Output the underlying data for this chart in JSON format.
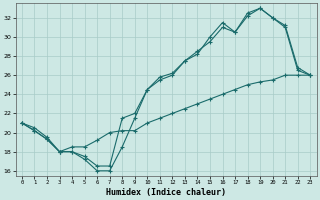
{
  "xlabel": "Humidex (Indice chaleur)",
  "xlim": [
    -0.5,
    23.5
  ],
  "ylim": [
    15.5,
    33.5
  ],
  "xticks": [
    0,
    1,
    2,
    3,
    4,
    5,
    6,
    7,
    8,
    9,
    10,
    11,
    12,
    13,
    14,
    15,
    16,
    17,
    18,
    19,
    20,
    21,
    22,
    23
  ],
  "yticks": [
    16,
    18,
    20,
    22,
    24,
    26,
    28,
    30,
    32
  ],
  "bg_color": "#cde8e4",
  "grid_color": "#a8ccc8",
  "line_color": "#1a6b6b",
  "series1_x": [
    0,
    1,
    2,
    3,
    4,
    5,
    6,
    7,
    8,
    9,
    10,
    11,
    12,
    13,
    14,
    15,
    16,
    17,
    18,
    19,
    20,
    21,
    22,
    23
  ],
  "series1_y": [
    21.0,
    20.2,
    19.3,
    18.0,
    18.0,
    17.2,
    16.0,
    16.0,
    18.5,
    21.5,
    24.5,
    25.8,
    26.2,
    27.5,
    28.5,
    29.5,
    31.0,
    30.5,
    32.2,
    33.0,
    32.0,
    31.0,
    26.5,
    26.0
  ],
  "series2_x": [
    0,
    1,
    2,
    3,
    4,
    5,
    6,
    7,
    8,
    9,
    10,
    11,
    12,
    13,
    14,
    15,
    16,
    17,
    18,
    19,
    20,
    21,
    22,
    23
  ],
  "series2_y": [
    21.0,
    20.2,
    19.3,
    18.0,
    18.0,
    17.5,
    16.5,
    16.5,
    21.5,
    22.0,
    24.5,
    25.5,
    26.0,
    27.5,
    28.2,
    30.0,
    31.5,
    30.5,
    32.5,
    33.0,
    32.0,
    31.2,
    26.8,
    26.0
  ],
  "series3_x": [
    0,
    1,
    2,
    3,
    4,
    5,
    6,
    7,
    8,
    9,
    10,
    11,
    12,
    13,
    14,
    15,
    16,
    17,
    18,
    19,
    20,
    21,
    22,
    23
  ],
  "series3_y": [
    21.0,
    20.5,
    19.5,
    18.0,
    18.5,
    18.5,
    19.2,
    20.0,
    20.2,
    20.2,
    21.0,
    21.5,
    22.0,
    22.5,
    23.0,
    23.5,
    24.0,
    24.5,
    25.0,
    25.3,
    25.5,
    26.0,
    26.0,
    26.0
  ]
}
